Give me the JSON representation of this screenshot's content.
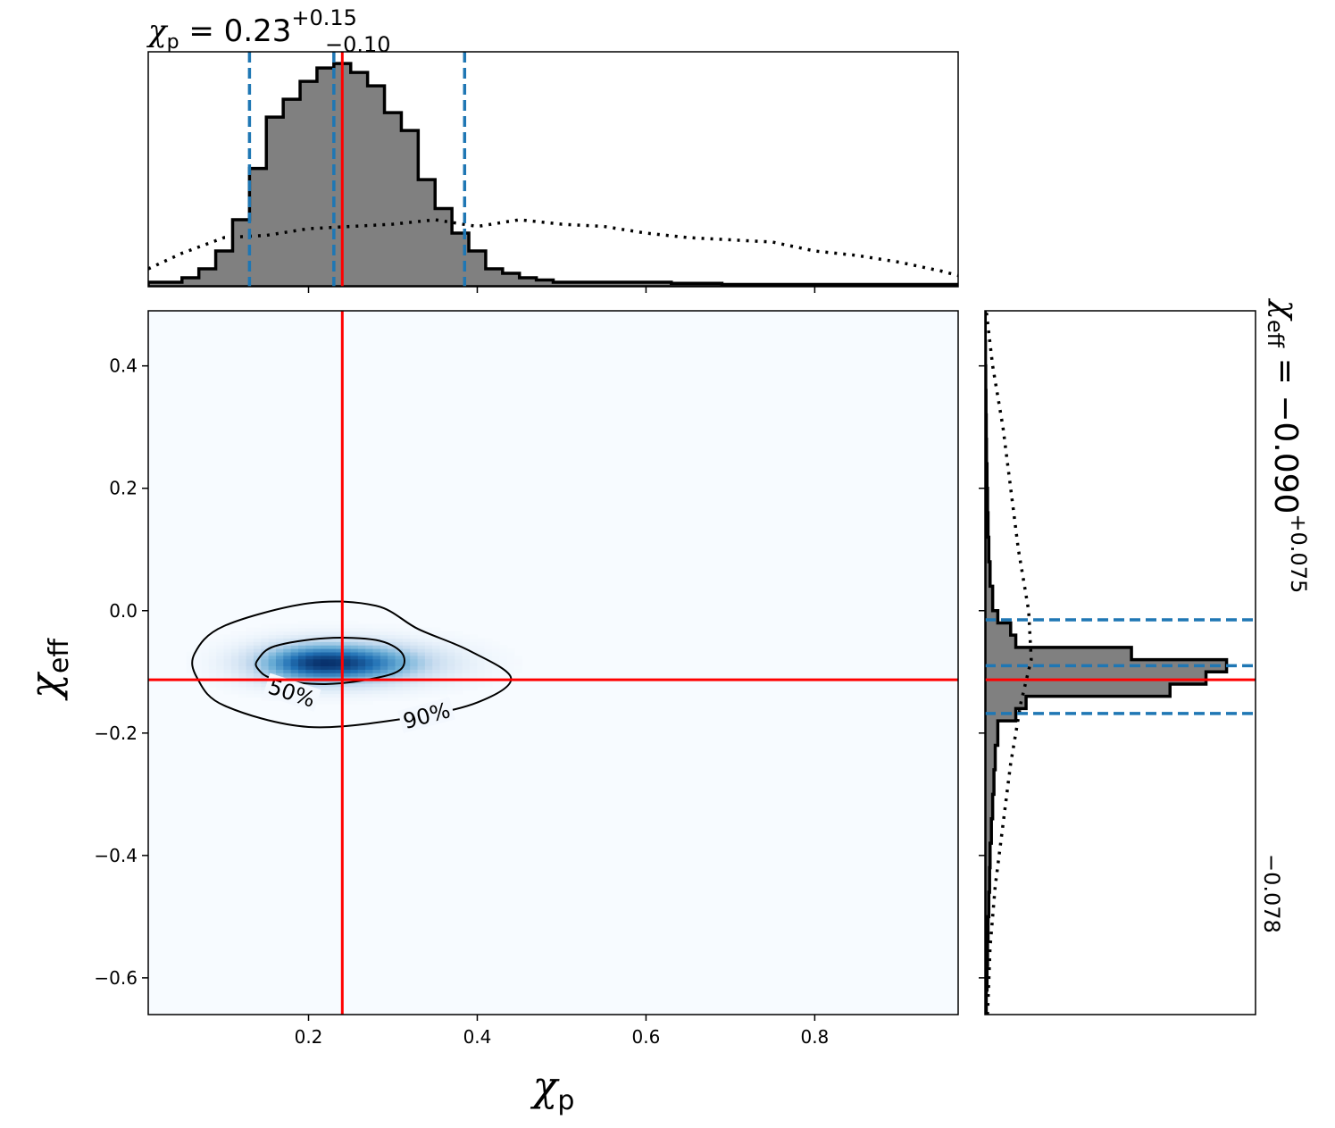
{
  "chart_data": {
    "type": "corner-plot",
    "marginal_top": {
      "title": {
        "symbol": "χ",
        "sub": "p",
        "eq": " = 0.23",
        "plus": "+0.15",
        "minus": "−0.10"
      },
      "median": 0.23,
      "lower": 0.13,
      "upper": 0.385,
      "truth": 0.24,
      "xlim": [
        0.01,
        0.97
      ],
      "hist_bin_width": 0.02,
      "hist_bin_start": 0.01,
      "hist_values": [
        0.02,
        0.02,
        0.04,
        0.08,
        0.16,
        0.3,
        0.53,
        0.76,
        0.84,
        0.92,
        0.98,
        1.0,
        0.96,
        0.9,
        0.78,
        0.7,
        0.48,
        0.35,
        0.24,
        0.16,
        0.08,
        0.06,
        0.04,
        0.03,
        0.02,
        0.02,
        0.02,
        0.02,
        0.02,
        0.02,
        0.02,
        0.015,
        0.015,
        0.015,
        0.01,
        0.01,
        0.01,
        0.01,
        0.01,
        0.01,
        0.01,
        0.01,
        0.01,
        0.01,
        0.01,
        0.01,
        0.01,
        0.01
      ],
      "prior_x": [
        0.01,
        0.05,
        0.1,
        0.15,
        0.2,
        0.25,
        0.3,
        0.35,
        0.4,
        0.45,
        0.5,
        0.55,
        0.6,
        0.65,
        0.7,
        0.75,
        0.8,
        0.85,
        0.9,
        0.95,
        0.97
      ],
      "prior_values": [
        0.08,
        0.15,
        0.22,
        0.23,
        0.26,
        0.27,
        0.28,
        0.3,
        0.27,
        0.3,
        0.28,
        0.27,
        0.24,
        0.22,
        0.21,
        0.2,
        0.16,
        0.14,
        0.11,
        0.07,
        0.05
      ]
    },
    "marginal_right": {
      "title": {
        "symbol": "χ",
        "sub": "eff",
        "eq": " = −0.090",
        "plus": "+0.075",
        "minus": "−0.078"
      },
      "median": -0.09,
      "lower": -0.168,
      "upper": -0.015,
      "truth": -0.113,
      "ylim": [
        -0.66,
        0.49
      ],
      "hist_bins": [
        -0.66,
        -0.62,
        -0.58,
        -0.54,
        -0.5,
        -0.46,
        -0.42,
        -0.38,
        -0.34,
        -0.3,
        -0.26,
        -0.22,
        -0.18,
        -0.16,
        -0.14,
        -0.12,
        -0.1,
        -0.08,
        -0.06,
        -0.04,
        -0.02,
        0.0,
        0.04,
        0.08,
        0.12,
        0.16,
        0.2,
        0.24,
        0.28,
        0.32,
        0.36,
        0.4,
        0.44,
        0.49
      ],
      "hist_values": [
        0.005,
        0.008,
        0.01,
        0.012,
        0.015,
        0.018,
        0.02,
        0.025,
        0.03,
        0.035,
        0.04,
        0.05,
        0.12,
        0.16,
        0.72,
        0.86,
        0.94,
        0.57,
        0.12,
        0.1,
        0.05,
        0.03,
        0.02,
        0.015,
        0.012,
        0.01,
        0.008,
        0.006,
        0.005,
        0.004,
        0.003,
        0.002,
        0.001
      ],
      "prior_y": [
        -0.66,
        -0.55,
        -0.45,
        -0.35,
        -0.25,
        -0.15,
        -0.08,
        0.0,
        0.1,
        0.2,
        0.3,
        0.4,
        0.49
      ],
      "prior_values": [
        0.01,
        0.02,
        0.04,
        0.07,
        0.1,
        0.14,
        0.18,
        0.17,
        0.13,
        0.1,
        0.07,
        0.03,
        0.005
      ]
    },
    "joint": {
      "type": "heatmap",
      "xlabel": {
        "symbol": "χ",
        "sub": "p"
      },
      "ylabel": {
        "symbol": "χ",
        "sub": "eff"
      },
      "xlim": [
        0.01,
        0.97
      ],
      "ylim": [
        -0.66,
        0.49
      ],
      "x_ticks": [
        0.2,
        0.4,
        0.6,
        0.8
      ],
      "x_tick_labels": [
        "0.2",
        "0.4",
        "0.6",
        "0.8"
      ],
      "y_ticks": [
        0.4,
        0.2,
        0.0,
        -0.2,
        -0.4,
        -0.6
      ],
      "y_tick_labels": [
        "0.4",
        "0.2",
        "0.0",
        "−0.2",
        "−0.4",
        "−0.6"
      ],
      "density_center": [
        0.22,
        -0.085
      ],
      "density_sigma": [
        0.055,
        0.022
      ],
      "colormap": [
        "#f7fbff",
        "#c6dbef",
        "#6baed6",
        "#2171b5",
        "#08306b"
      ],
      "contours": [
        {
          "label": "50%",
          "points": [
            [
              0.14,
              -0.08
            ],
            [
              0.16,
              -0.058
            ],
            [
              0.22,
              -0.045
            ],
            [
              0.28,
              -0.048
            ],
            [
              0.31,
              -0.068
            ],
            [
              0.31,
              -0.095
            ],
            [
              0.28,
              -0.11
            ],
            [
              0.22,
              -0.12
            ],
            [
              0.16,
              -0.112
            ],
            [
              0.14,
              -0.095
            ]
          ]
        },
        {
          "label": "90%",
          "points": [
            [
              0.065,
              -0.07
            ],
            [
              0.1,
              -0.025
            ],
            [
              0.2,
              0.012
            ],
            [
              0.28,
              0.008
            ],
            [
              0.33,
              -0.03
            ],
            [
              0.39,
              -0.065
            ],
            [
              0.44,
              -0.11
            ],
            [
              0.4,
              -0.15
            ],
            [
              0.32,
              -0.175
            ],
            [
              0.2,
              -0.19
            ],
            [
              0.1,
              -0.155
            ],
            [
              0.068,
              -0.11
            ]
          ]
        }
      ],
      "truth": [
        0.24,
        -0.113
      ]
    },
    "colors": {
      "hist_fill": "#808080",
      "quantile": "#1f77b4",
      "truth": "#ff0000",
      "line": "#000000"
    }
  }
}
